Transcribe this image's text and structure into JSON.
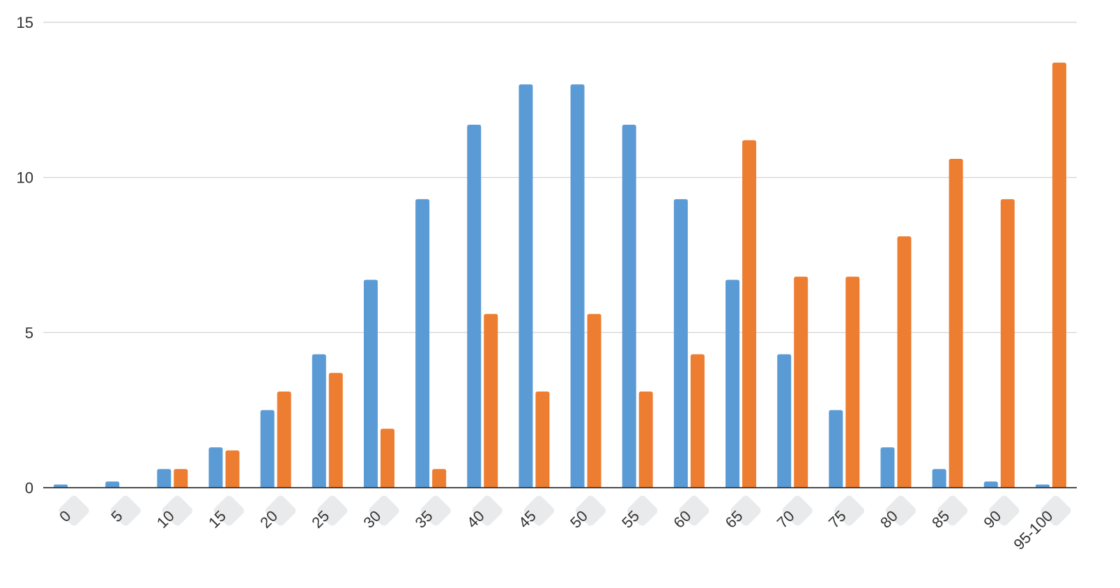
{
  "chart_data": {
    "type": "bar",
    "title": "",
    "xlabel": "",
    "ylabel": "",
    "ylim": [
      0,
      15
    ],
    "yticks": [
      0,
      5,
      10,
      15
    ],
    "grid": true,
    "legend": "none",
    "categories": [
      "0",
      "5",
      "10",
      "15",
      "20",
      "25",
      "30",
      "35",
      "40",
      "45",
      "50",
      "55",
      "60",
      "65",
      "70",
      "75",
      "80",
      "85",
      "90",
      "95-100"
    ],
    "series": [
      {
        "color": "#5B9BD5",
        "values": [
          0.1,
          0.2,
          0.6,
          1.3,
          2.5,
          4.3,
          6.7,
          9.3,
          11.7,
          13.0,
          13.0,
          11.7,
          9.3,
          6.7,
          4.3,
          2.5,
          1.3,
          0.6,
          0.2,
          0.1
        ]
      },
      {
        "color": "#ED7D31",
        "values": [
          0,
          0,
          0.6,
          1.2,
          3.1,
          3.7,
          1.9,
          0.6,
          5.6,
          3.1,
          5.6,
          3.1,
          4.3,
          11.2,
          6.8,
          6.8,
          8.1,
          10.6,
          9.3,
          13.7
        ]
      }
    ]
  }
}
